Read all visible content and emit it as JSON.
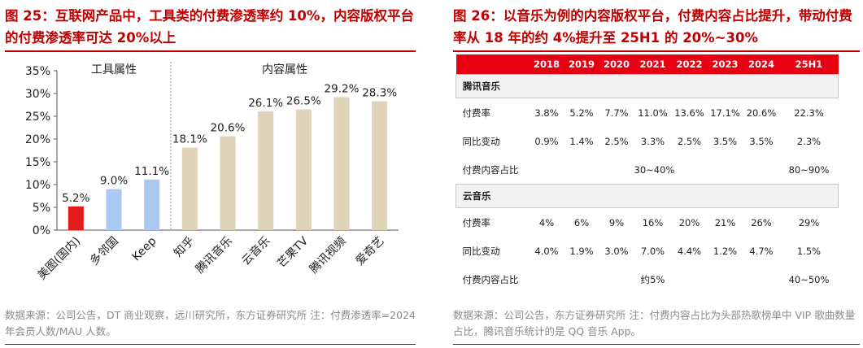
{
  "left_figure": {
    "title": "图 25：互联网产品中，工具类的付费渗透率约 10%，内容版权平台的付费渗透率可达 20%以上",
    "source": "数据来源：公司公告，DT 商业观察，远川研究所，东方证券研究所 注：付费渗透率=2024 年会员人数/MAU 人数。"
  },
  "right_figure": {
    "title": "图 26：以音乐为例的内容版权平台，付费内容占比提升，带动付费率从 18 年的约 4%提升至 25H1 的 20%~30%",
    "source": "数据来源：公司公告，东方证券研究所 注：付费内容占比为头部热歌榜单中 VIP 歌曲数量占比，腾讯音乐统计的是 QQ 音乐 App。"
  },
  "colors": {
    "title_red": "#c00000",
    "bar_red": "#e31b1b",
    "bar_blue": "#a9c8f2",
    "bar_beige": "#dfd3b8",
    "header_red": "#e60012"
  },
  "chart_data": [
    {
      "type": "bar",
      "categories": [
        "美图(国内)",
        "多邻国",
        "Keep",
        "知乎",
        "腾讯音乐",
        "云音乐",
        "芒果TV",
        "腾讯视频",
        "爱奇艺"
      ],
      "values": [
        5.2,
        9.0,
        11.1,
        18.1,
        20.6,
        26.1,
        26.5,
        29.2,
        28.3
      ],
      "value_labels": [
        "5.2%",
        "9.0%",
        "11.1%",
        "18.1%",
        "20.6%",
        "26.1%",
        "26.5%",
        "29.2%",
        "28.3%"
      ],
      "bar_colors": [
        "#e31b1b",
        "#a9c8f2",
        "#a9c8f2",
        "#dfd3b8",
        "#dfd3b8",
        "#dfd3b8",
        "#dfd3b8",
        "#dfd3b8",
        "#dfd3b8"
      ],
      "ylim": [
        0,
        35
      ],
      "yticks": [
        0,
        5,
        10,
        15,
        20,
        25,
        30,
        35
      ],
      "ytick_labels": [
        "0%",
        "5%",
        "10%",
        "15%",
        "20%",
        "25%",
        "30%",
        "35%"
      ],
      "group_labels": [
        "工具属性",
        "内容属性"
      ],
      "grid": false,
      "legend": "none"
    },
    {
      "type": "table",
      "columns": [
        "",
        "2018",
        "2019",
        "2020",
        "2021",
        "2022",
        "2023",
        "2024",
        "25H1"
      ],
      "sections": [
        {
          "name": "腾讯音乐",
          "rows": [
            {
              "label": "付费率",
              "cells": [
                "3.8%",
                "5.2%",
                "7.7%",
                "11.0%",
                "13.6%",
                "17.1%",
                "20.6%",
                "22.3%"
              ]
            },
            {
              "label": "同比变动",
              "cells": [
                "0.9%",
                "1.4%",
                "2.5%",
                "3.3%",
                "2.5%",
                "3.5%",
                "3.5%",
                "2.3%"
              ]
            },
            {
              "label": "付费内容占比",
              "cells": [
                "",
                "",
                "",
                "30~40%",
                "",
                "",
                "",
                "80~90%"
              ]
            }
          ]
        },
        {
          "name": "云音乐",
          "rows": [
            {
              "label": "付费率",
              "cells": [
                "4%",
                "6%",
                "9%",
                "16%",
                "20%",
                "21%",
                "26%",
                "29%"
              ]
            },
            {
              "label": "同比变动",
              "cells": [
                "4.0%",
                "1.9%",
                "3.0%",
                "7.0%",
                "4.4%",
                "1.2%",
                "4.7%",
                "1.5%"
              ]
            },
            {
              "label": "付费内容占比",
              "cells": [
                "",
                "",
                "",
                "约5%",
                "",
                "",
                "",
                "40~50%"
              ]
            }
          ]
        }
      ]
    }
  ]
}
